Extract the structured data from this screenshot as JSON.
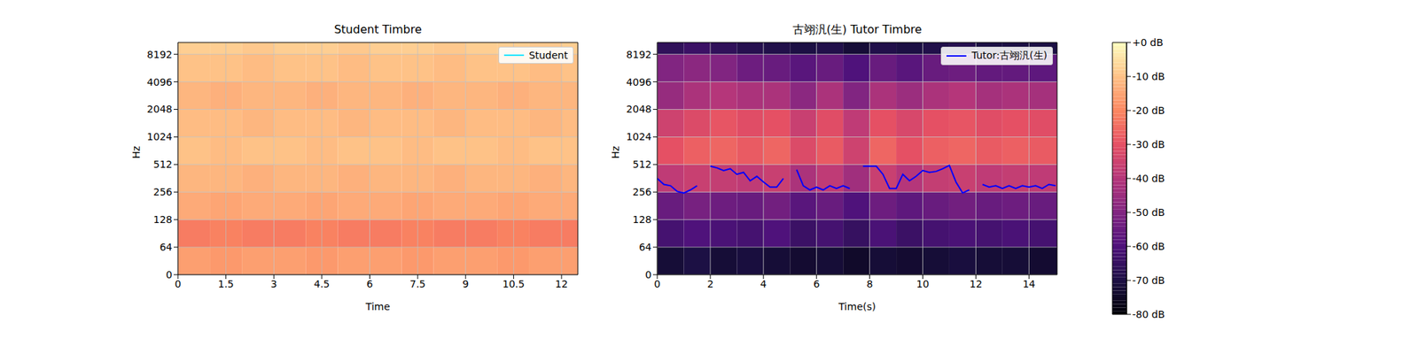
{
  "chart_data": [
    {
      "type": "heatmap",
      "title": "Student Timbre",
      "xlabel": "Time",
      "ylabel": "Hz",
      "xlim": [
        0,
        12.51
      ],
      "xticks": [
        0,
        1.5,
        3,
        4.5,
        6,
        7.5,
        9,
        10.5,
        12
      ],
      "ylim": [
        0,
        11025
      ],
      "yticks": [
        0,
        64,
        128,
        256,
        512,
        1024,
        2048,
        4096,
        8192
      ],
      "log": "y",
      "grid": true,
      "legend": "upper right",
      "time_edges": [
        0,
        1,
        2,
        3,
        4,
        5,
        6,
        7,
        8,
        9,
        10,
        11,
        12,
        12.51
      ],
      "freq_edges": [
        0,
        64,
        128,
        256,
        512,
        1024,
        2048,
        4096,
        8192,
        11025
      ],
      "cells": [
        [
          -16,
          -17,
          -16,
          -16,
          -17,
          -16,
          -16,
          -17,
          -16,
          -16,
          -17,
          -16,
          -16
        ],
        [
          -22,
          -21,
          -22,
          -22,
          -21,
          -22,
          -22,
          -21,
          -22,
          -22,
          -21,
          -22,
          -22
        ],
        [
          -14,
          -15,
          -14,
          -14,
          -15,
          -14,
          -14,
          -15,
          -14,
          -14,
          -15,
          -14,
          -14
        ],
        [
          -12,
          -12,
          -13,
          -12,
          -12,
          -13,
          -12,
          -12,
          -13,
          -12,
          -12,
          -13,
          -12
        ],
        [
          -10,
          -11,
          -10,
          -10,
          -11,
          -10,
          -10,
          -11,
          -10,
          -10,
          -11,
          -10,
          -10
        ],
        [
          -11,
          -11,
          -12,
          -11,
          -11,
          -12,
          -11,
          -11,
          -12,
          -11,
          -11,
          -12,
          -11
        ],
        [
          -12,
          -13,
          -12,
          -12,
          -13,
          -12,
          -12,
          -13,
          -12,
          -12,
          -13,
          -12,
          -12
        ],
        [
          -10,
          -10,
          -11,
          -10,
          -10,
          -11,
          -10,
          -10,
          -11,
          -10,
          -10,
          -11,
          -10
        ],
        [
          -8,
          -8,
          -9,
          -8,
          -8,
          -9,
          -8,
          -8,
          -9,
          -8,
          -8,
          -9,
          -8
        ]
      ],
      "series": [
        {
          "name": "Student",
          "color": "#00e5ff",
          "type": "line",
          "x": [],
          "values": []
        }
      ]
    },
    {
      "type": "heatmap",
      "title": "古翊汎(生) Tutor Timbre",
      "xlabel": "Time(s)",
      "ylabel": "Hz",
      "xlim": [
        0,
        15.06
      ],
      "xticks": [
        0,
        2,
        4,
        6,
        8,
        10,
        12,
        14
      ],
      "ylim": [
        0,
        11025
      ],
      "yticks": [
        0,
        64,
        128,
        256,
        512,
        1024,
        2048,
        4096,
        8192
      ],
      "log": "y",
      "grid": true,
      "legend": "upper right",
      "time_edges": [
        0,
        1,
        2,
        3,
        4,
        5,
        6,
        7,
        8,
        9,
        10,
        11,
        12,
        13,
        14,
        15.06
      ],
      "freq_edges": [
        0,
        64,
        128,
        256,
        512,
        1024,
        2048,
        4096,
        8192,
        11025
      ],
      "cells": [
        [
          -72,
          -70,
          -72,
          -71,
          -72,
          -73,
          -72,
          -74,
          -72,
          -73,
          -72,
          -71,
          -72,
          -72,
          -73
        ],
        [
          -62,
          -60,
          -61,
          -62,
          -60,
          -64,
          -62,
          -65,
          -61,
          -64,
          -62,
          -61,
          -62,
          -61,
          -62
        ],
        [
          -55,
          -52,
          -54,
          -55,
          -53,
          -58,
          -55,
          -60,
          -54,
          -57,
          -55,
          -53,
          -55,
          -54,
          -55
        ],
        [
          -38,
          -36,
          -37,
          -38,
          -36,
          -42,
          -38,
          -44,
          -36,
          -40,
          -37,
          -36,
          -38,
          -37,
          -38
        ],
        [
          -30,
          -27,
          -26,
          -28,
          -26,
          -32,
          -28,
          -35,
          -26,
          -30,
          -27,
          -26,
          -28,
          -27,
          -28
        ],
        [
          -35,
          -32,
          -29,
          -31,
          -30,
          -36,
          -31,
          -38,
          -30,
          -33,
          -30,
          -29,
          -31,
          -30,
          -31
        ],
        [
          -46,
          -42,
          -40,
          -42,
          -42,
          -48,
          -42,
          -50,
          -42,
          -45,
          -42,
          -40,
          -43,
          -42,
          -43
        ],
        [
          -50,
          -48,
          -50,
          -54,
          -55,
          -58,
          -55,
          -60,
          -55,
          -58,
          -55,
          -54,
          -56,
          -56,
          -57
        ],
        [
          -66,
          -64,
          -66,
          -68,
          -69,
          -70,
          -69,
          -72,
          -69,
          -70,
          -69,
          -68,
          -70,
          -70,
          -70
        ]
      ],
      "series": [
        {
          "name": "Tutor:古翊汎(生)",
          "color": "#0000ff",
          "type": "line",
          "x": [
            0,
            0.25,
            0.5,
            0.75,
            1,
            1.25,
            1.5,
            1.75,
            2,
            2.25,
            2.5,
            2.75,
            3,
            3.25,
            3.5,
            3.75,
            4,
            4.25,
            4.5,
            4.75,
            5,
            5.25,
            5.5,
            5.75,
            6,
            6.25,
            6.5,
            6.75,
            7,
            7.25,
            7.5,
            7.75,
            8,
            8.25,
            8.5,
            8.75,
            9,
            9.25,
            9.5,
            9.75,
            10,
            10.25,
            10.5,
            10.75,
            11,
            11.25,
            11.5,
            11.75,
            12,
            12.25,
            12.5,
            12.75,
            13,
            13.25,
            13.5,
            13.75,
            14,
            14.25,
            14.5,
            14.75,
            15
          ],
          "values": [
            360,
            310,
            300,
            260,
            250,
            270,
            300,
            null,
            490,
            470,
            440,
            460,
            400,
            420,
            340,
            380,
            330,
            290,
            290,
            360,
            null,
            450,
            300,
            270,
            290,
            270,
            300,
            280,
            300,
            280,
            null,
            490,
            490,
            490,
            400,
            280,
            280,
            400,
            340,
            380,
            440,
            420,
            430,
            460,
            500,
            330,
            250,
            270,
            null,
            310,
            290,
            300,
            280,
            300,
            280,
            300,
            290,
            300,
            280,
            310,
            300
          ]
        }
      ]
    },
    {
      "type": "colorbar",
      "ylim": [
        -80,
        0
      ],
      "yticks": [
        {
          "value": 0,
          "label": "+0 dB"
        },
        {
          "value": -10,
          "label": "-10 dB"
        },
        {
          "value": -20,
          "label": "-20 dB"
        },
        {
          "value": -30,
          "label": "-30 dB"
        },
        {
          "value": -40,
          "label": "-40 dB"
        },
        {
          "value": -50,
          "label": "-50 dB"
        },
        {
          "value": -60,
          "label": "-60 dB"
        },
        {
          "value": -70,
          "label": "-70 dB"
        },
        {
          "value": -80,
          "label": "-80 dB"
        }
      ]
    }
  ]
}
